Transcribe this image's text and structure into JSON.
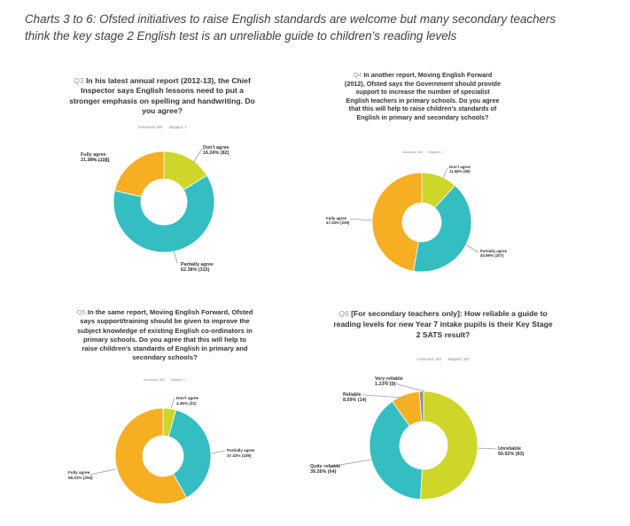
{
  "page": {
    "title_line1": "Charts 3 to 6: Ofsted initiatives to raise English standards are welcome but many secondary teachers",
    "title_line2": "think the key stage 2 English test is an unreliable guide to children’s reading levels"
  },
  "colors": {
    "teal": "#35bec1",
    "orange": "#f6ae22",
    "lime": "#cdd629",
    "gray": "#8e8e8e",
    "leader": "#9a9a9a"
  },
  "charts": {
    "q3": {
      "num": "Q3",
      "question": "In his latest annual report (2012-13), the Chief Inspector says English lessons need to put a stronger emphasis on spelling and handwriting. Do you agree?",
      "answered": "Answered: 505",
      "skipped": "Skipped: 1",
      "labels": {
        "dont_name": "Don't agree",
        "dont_val": "16.24% (82)",
        "partial_name": "Partially agree",
        "partial_val": "62.38% (315)",
        "fully_name": "Fully agree",
        "fully_val": "21.39% (108)"
      }
    },
    "q4": {
      "num": "Q4",
      "question": "In another report, Moving English Forward (2012), Ofsted says the Government should provide support to increase the number of specialist English teachers in primary schools. Do you agree that this will help to raise children's standards of English in primary and secondary schools?",
      "answered": "Answered: 505",
      "skipped": "Skipped: 1",
      "labels": {
        "dont_name": "Don't agree",
        "dont_val": "11.68% (59)",
        "partial_name": "Partially agree",
        "partial_val": "40.99% (207)",
        "fully_name": "Fully agree",
        "fully_val": "47.33% (239)"
      }
    },
    "q5": {
      "num": "Q5",
      "question": "In the same report, Moving English Forward, Ofsted says support/training should be given to improve the subject knowledge of existing English co-ordinators in primary schools. Do you agree that this will help to raise children's standards of English in primary and secondary schools?",
      "answered": "Answered: 505",
      "skipped": "Skipped: 1",
      "labels": {
        "dont_name": "Don't agree",
        "dont_val": "4.36% (22)",
        "partial_name": "Partially agree",
        "partial_val": "37.43% (189)",
        "fully_name": "Fully agree",
        "fully_val": "58.22% (294)"
      }
    },
    "q6": {
      "num": "Q6",
      "question": "[For secondary teachers only]: How reliable a guide to reading levels for new Year 7 intake pupils is their Key Stage 2 SATS result?",
      "answered": "Answered: 163",
      "skipped": "Skipped: 343",
      "labels": {
        "very_name": "Very reliable",
        "very_val": "1.23% (2)",
        "reliable_name": "Reliable",
        "reliable_val": "8.59% (14)",
        "quite_name": "Quite reliable",
        "quite_val": "39.26% (64)",
        "unrel_name": "Unreliable",
        "unrel_val": "50.92% (83)"
      }
    }
  },
  "chart_data": [
    {
      "type": "pie",
      "title": "Q3 In his latest annual report (2012-13), the Chief Inspector says English lessons need to put a stronger emphasis on spelling and handwriting. Do you agree?",
      "subtitle": "Answered: 505 Skipped: 1",
      "categories": [
        "Don't agree",
        "Partially agree",
        "Fully agree"
      ],
      "values": [
        16.24,
        62.38,
        21.39
      ],
      "counts": [
        82,
        315,
        108
      ],
      "colors": [
        "#cdd629",
        "#35bec1",
        "#f6ae22"
      ],
      "donut": true
    },
    {
      "type": "pie",
      "title": "Q4 In another report, Moving English Forward (2012), Ofsted says the Government should provide support to increase the number of specialist English teachers in primary schools. Do you agree that this will help to raise children's standards of English in primary and secondary schools?",
      "subtitle": "Answered: 505 Skipped: 1",
      "categories": [
        "Don't agree",
        "Partially agree",
        "Fully agree"
      ],
      "values": [
        11.68,
        40.99,
        47.33
      ],
      "counts": [
        59,
        207,
        239
      ],
      "colors": [
        "#cdd629",
        "#35bec1",
        "#f6ae22"
      ],
      "donut": true
    },
    {
      "type": "pie",
      "title": "Q5 In the same report, Moving English Forward, Ofsted says support/training should be given to improve the subject knowledge of existing English co-ordinators in primary schools. Do you agree that this will help to raise children's standards of English in primary and secondary schools?",
      "subtitle": "Answered: 505 Skipped: 1",
      "categories": [
        "Don't agree",
        "Partially agree",
        "Fully agree"
      ],
      "values": [
        4.36,
        37.43,
        58.22
      ],
      "counts": [
        22,
        189,
        294
      ],
      "colors": [
        "#cdd629",
        "#35bec1",
        "#f6ae22"
      ],
      "donut": true
    },
    {
      "type": "pie",
      "title": "Q6 [For secondary teachers only]: How reliable a guide to reading levels for new Year 7 intake pupils is their Key Stage 2 SATS result?",
      "subtitle": "Answered: 163 Skipped: 343",
      "categories": [
        "Unreliable",
        "Quite reliable",
        "Reliable",
        "Very reliable"
      ],
      "values": [
        50.92,
        39.26,
        8.59,
        1.23
      ],
      "counts": [
        83,
        64,
        14,
        2
      ],
      "colors": [
        "#cdd629",
        "#35bec1",
        "#f6ae22",
        "#8e8e8e"
      ],
      "donut": true
    }
  ]
}
